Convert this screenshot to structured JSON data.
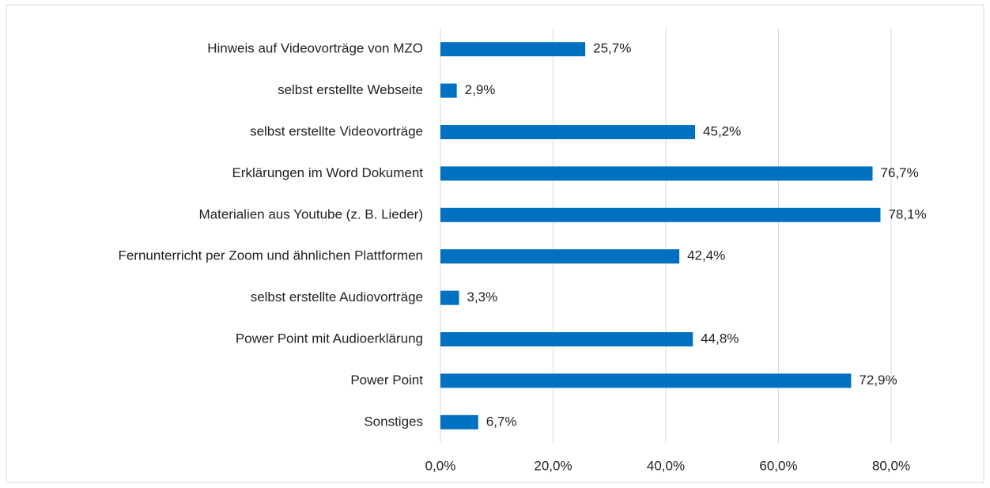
{
  "chart_data": {
    "type": "bar",
    "orientation": "horizontal",
    "categories": [
      "Hinweis auf Videovorträge von MZO",
      "selbst erstellte Webseite",
      "selbst erstellte Videovorträge",
      "Erklärungen im Word Dokument",
      "Materialien aus Youtube (z. B. Lieder)",
      "Fernunterricht per Zoom und ähnlichen Plattformen",
      "selbst erstellte Audiovorträge",
      "Power Point mit Audioerklärung",
      "Power Point",
      "Sonstiges"
    ],
    "values": [
      25.7,
      2.9,
      45.2,
      76.7,
      78.1,
      42.4,
      3.3,
      44.8,
      72.9,
      6.7
    ],
    "value_labels": [
      "25,7%",
      "2,9%",
      "45,2%",
      "76,7%",
      "78,1%",
      "42,4%",
      "3,3%",
      "44,8%",
      "72,9%",
      "6,7%"
    ],
    "color": "#0070c0",
    "xlim": [
      0,
      80
    ],
    "xticks": [
      {
        "value": 0,
        "label": "0,0%"
      },
      {
        "value": 20,
        "label": "20,0%"
      },
      {
        "value": 40,
        "label": "40,0%"
      },
      {
        "value": 60,
        "label": "60,0%"
      },
      {
        "value": 80,
        "label": "80,0%"
      }
    ],
    "grid": true
  }
}
